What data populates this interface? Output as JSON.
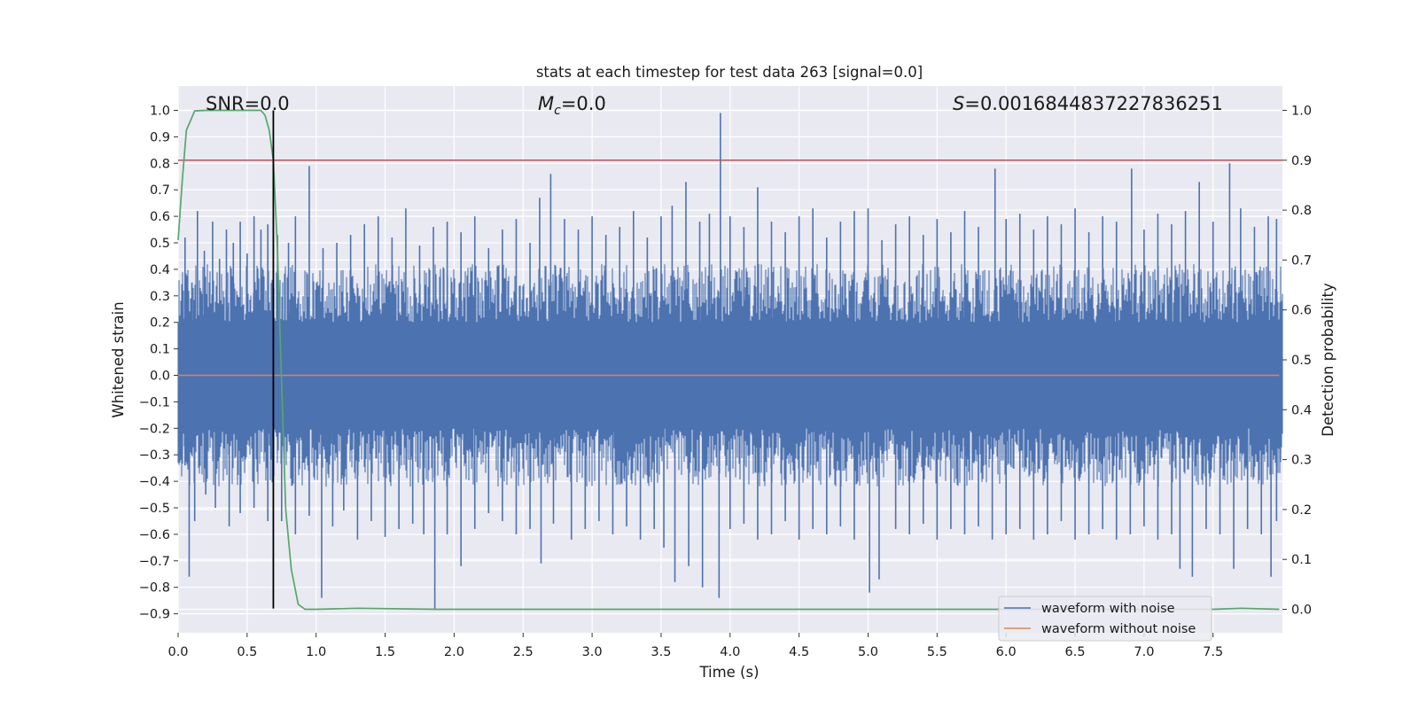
{
  "chart_data": {
    "type": "line",
    "title": "stats at each timestep for test data 263 [signal=0.0]",
    "xlabel": "Time (s)",
    "ylabel": "Whitened strain",
    "y2label": "Detection probability",
    "xlim": [
      0.0,
      7.98
    ],
    "ylim": [
      -0.9,
      1.0
    ],
    "y2lim": [
      0.0,
      1.0
    ],
    "x_ticks": [
      0.0,
      0.5,
      1.0,
      1.5,
      2.0,
      2.5,
      3.0,
      3.5,
      4.0,
      4.5,
      5.0,
      5.5,
      6.0,
      6.5,
      7.0,
      7.5
    ],
    "x_tick_labels": [
      "0.0",
      "0.5",
      "1.0",
      "1.5",
      "2.0",
      "2.5",
      "3.0",
      "3.5",
      "4.0",
      "4.5",
      "5.0",
      "5.5",
      "6.0",
      "6.5",
      "7.0",
      "7.5"
    ],
    "y_ticks": [
      1.0,
      0.9,
      0.8,
      0.7,
      0.6,
      0.5,
      0.4,
      0.3,
      0.2,
      0.1,
      0.0,
      -0.1,
      -0.2,
      -0.3,
      -0.4,
      -0.5,
      -0.6,
      -0.7,
      -0.8,
      -0.9
    ],
    "y_tick_labels": [
      "1.0",
      "0.9",
      "0.8",
      "0.7",
      "0.6",
      "0.5",
      "0.4",
      "0.3",
      "0.2",
      "0.1",
      "0.0",
      "−0.1",
      "−0.2",
      "−0.3",
      "−0.4",
      "−0.5",
      "−0.6",
      "−0.7",
      "−0.8",
      "−0.9"
    ],
    "y2_ticks": [
      1.0,
      0.9,
      0.8,
      0.7,
      0.6,
      0.5,
      0.4,
      0.3,
      0.2,
      0.1,
      0.0
    ],
    "y2_tick_labels": [
      "1.0",
      "0.9",
      "0.8",
      "0.7",
      "0.6",
      "0.5",
      "0.4",
      "0.3",
      "0.2",
      "0.1",
      "0.0"
    ],
    "grid": true,
    "background": "#e9e9f1",
    "legend_position": "lower-right",
    "annotations": {
      "snr": "SNR=0.0",
      "mc_symbol": "M",
      "mc_subscript": "c",
      "mc_value": "=0.0",
      "s_symbol": "S",
      "s_value": "=0.0016844837227836251"
    },
    "threshold": {
      "y2": 0.9,
      "color": "#c44e52"
    },
    "event_marker": {
      "x": 0.69,
      "y_range": [
        -0.88,
        1.0
      ],
      "color": "#000000"
    },
    "series": [
      {
        "name": "waveform with noise",
        "color": "#4c72b0",
        "axis": "left",
        "peaks_positive": [
          [
            0.05,
            0.52
          ],
          [
            0.1,
            0.35
          ],
          [
            0.14,
            0.62
          ],
          [
            0.19,
            0.47
          ],
          [
            0.25,
            0.58
          ],
          [
            0.3,
            0.44
          ],
          [
            0.35,
            0.55
          ],
          [
            0.4,
            0.5
          ],
          [
            0.45,
            0.58
          ],
          [
            0.5,
            0.46
          ],
          [
            0.55,
            0.6
          ],
          [
            0.6,
            0.55
          ],
          [
            0.65,
            0.57
          ],
          [
            0.72,
            0.53
          ],
          [
            0.8,
            0.5
          ],
          [
            0.85,
            0.6
          ],
          [
            0.95,
            0.79
          ],
          [
            1.05,
            0.48
          ],
          [
            1.15,
            0.5
          ],
          [
            1.25,
            0.53
          ],
          [
            1.35,
            0.57
          ],
          [
            1.45,
            0.6
          ],
          [
            1.55,
            0.52
          ],
          [
            1.65,
            0.63
          ],
          [
            1.75,
            0.49
          ],
          [
            1.85,
            0.56
          ],
          [
            1.95,
            0.58
          ],
          [
            2.05,
            0.54
          ],
          [
            2.15,
            0.6
          ],
          [
            2.25,
            0.48
          ],
          [
            2.35,
            0.55
          ],
          [
            2.45,
            0.59
          ],
          [
            2.55,
            0.5
          ],
          [
            2.62,
            0.67
          ],
          [
            2.7,
            0.76
          ],
          [
            2.8,
            0.59
          ],
          [
            2.9,
            0.55
          ],
          [
            3.0,
            0.6
          ],
          [
            3.1,
            0.53
          ],
          [
            3.2,
            0.56
          ],
          [
            3.3,
            0.62
          ],
          [
            3.4,
            0.52
          ],
          [
            3.5,
            0.6
          ],
          [
            3.58,
            0.64
          ],
          [
            3.68,
            0.73
          ],
          [
            3.78,
            0.58
          ],
          [
            3.85,
            0.61
          ],
          [
            3.93,
            0.99
          ],
          [
            4.0,
            0.6
          ],
          [
            4.1,
            0.56
          ],
          [
            4.2,
            0.71
          ],
          [
            4.3,
            0.58
          ],
          [
            4.4,
            0.54
          ],
          [
            4.5,
            0.6
          ],
          [
            4.6,
            0.63
          ],
          [
            4.7,
            0.52
          ],
          [
            4.8,
            0.58
          ],
          [
            4.9,
            0.62
          ],
          [
            5.0,
            0.63
          ],
          [
            5.1,
            0.51
          ],
          [
            5.2,
            0.57
          ],
          [
            5.3,
            0.6
          ],
          [
            5.4,
            0.53
          ],
          [
            5.5,
            0.59
          ],
          [
            5.6,
            0.54
          ],
          [
            5.7,
            0.62
          ],
          [
            5.8,
            0.56
          ],
          [
            5.92,
            0.78
          ],
          [
            6.0,
            0.59
          ],
          [
            6.1,
            0.61
          ],
          [
            6.2,
            0.55
          ],
          [
            6.3,
            0.6
          ],
          [
            6.4,
            0.57
          ],
          [
            6.5,
            0.63
          ],
          [
            6.6,
            0.54
          ],
          [
            6.7,
            0.6
          ],
          [
            6.8,
            0.58
          ],
          [
            6.91,
            0.78
          ],
          [
            7.0,
            0.55
          ],
          [
            7.1,
            0.61
          ],
          [
            7.2,
            0.57
          ],
          [
            7.3,
            0.62
          ],
          [
            7.4,
            0.73
          ],
          [
            7.5,
            0.58
          ],
          [
            7.62,
            0.8
          ],
          [
            7.7,
            0.63
          ],
          [
            7.8,
            0.56
          ],
          [
            7.9,
            0.6
          ],
          [
            7.96,
            0.59
          ]
        ],
        "peaks_negative": [
          [
            0.05,
            -0.34
          ],
          [
            0.08,
            -0.76
          ],
          [
            0.12,
            -0.55
          ],
          [
            0.2,
            -0.45
          ],
          [
            0.27,
            -0.5
          ],
          [
            0.37,
            -0.57
          ],
          [
            0.45,
            -0.52
          ],
          [
            0.55,
            -0.5
          ],
          [
            0.65,
            -0.55
          ],
          [
            0.75,
            -0.55
          ],
          [
            0.85,
            -0.6
          ],
          [
            0.95,
            -0.53
          ],
          [
            1.04,
            -0.84
          ],
          [
            1.12,
            -0.57
          ],
          [
            1.2,
            -0.51
          ],
          [
            1.3,
            -0.62
          ],
          [
            1.4,
            -0.55
          ],
          [
            1.5,
            -0.61
          ],
          [
            1.6,
            -0.58
          ],
          [
            1.7,
            -0.56
          ],
          [
            1.78,
            -0.6
          ],
          [
            1.86,
            -0.88
          ],
          [
            1.95,
            -0.6
          ],
          [
            2.05,
            -0.72
          ],
          [
            2.15,
            -0.58
          ],
          [
            2.25,
            -0.52
          ],
          [
            2.35,
            -0.55
          ],
          [
            2.45,
            -0.6
          ],
          [
            2.55,
            -0.58
          ],
          [
            2.63,
            -0.71
          ],
          [
            2.72,
            -0.56
          ],
          [
            2.85,
            -0.62
          ],
          [
            2.95,
            -0.58
          ],
          [
            3.05,
            -0.55
          ],
          [
            3.15,
            -0.6
          ],
          [
            3.25,
            -0.57
          ],
          [
            3.35,
            -0.62
          ],
          [
            3.45,
            -0.58
          ],
          [
            3.52,
            -0.65
          ],
          [
            3.6,
            -0.78
          ],
          [
            3.7,
            -0.72
          ],
          [
            3.8,
            -0.8
          ],
          [
            3.92,
            -0.84
          ],
          [
            4.0,
            -0.58
          ],
          [
            4.1,
            -0.56
          ],
          [
            4.2,
            -0.62
          ],
          [
            4.3,
            -0.6
          ],
          [
            4.4,
            -0.55
          ],
          [
            4.5,
            -0.62
          ],
          [
            4.6,
            -0.58
          ],
          [
            4.7,
            -0.6
          ],
          [
            4.8,
            -0.57
          ],
          [
            4.9,
            -0.62
          ],
          [
            5.01,
            -0.82
          ],
          [
            5.08,
            -0.77
          ],
          [
            5.2,
            -0.58
          ],
          [
            5.3,
            -0.6
          ],
          [
            5.4,
            -0.56
          ],
          [
            5.5,
            -0.62
          ],
          [
            5.6,
            -0.58
          ],
          [
            5.7,
            -0.6
          ],
          [
            5.8,
            -0.57
          ],
          [
            5.9,
            -0.62
          ],
          [
            6.0,
            -0.6
          ],
          [
            6.1,
            -0.58
          ],
          [
            6.2,
            -0.62
          ],
          [
            6.3,
            -0.6
          ],
          [
            6.4,
            -0.55
          ],
          [
            6.5,
            -0.62
          ],
          [
            6.6,
            -0.6
          ],
          [
            6.7,
            -0.58
          ],
          [
            6.8,
            -0.62
          ],
          [
            6.9,
            -0.6
          ],
          [
            7.0,
            -0.57
          ],
          [
            7.1,
            -0.62
          ],
          [
            7.2,
            -0.6
          ],
          [
            7.26,
            -0.73
          ],
          [
            7.35,
            -0.76
          ],
          [
            7.45,
            -0.58
          ],
          [
            7.55,
            -0.6
          ],
          [
            7.65,
            -0.73
          ],
          [
            7.75,
            -0.58
          ],
          [
            7.85,
            -0.6
          ],
          [
            7.92,
            -0.76
          ],
          [
            7.96,
            -0.55
          ]
        ]
      },
      {
        "name": "waveform without noise",
        "color": "#dd8452",
        "axis": "left",
        "x": [
          0.0,
          7.98
        ],
        "y": [
          0.0,
          0.0
        ]
      },
      {
        "color": "#55a868",
        "axis": "right",
        "x": [
          0.0,
          0.03,
          0.06,
          0.12,
          0.2,
          0.3,
          0.4,
          0.5,
          0.55,
          0.6,
          0.63,
          0.66,
          0.69,
          0.72,
          0.75,
          0.78,
          0.82,
          0.87,
          0.92,
          1.0,
          1.3,
          1.87,
          3.0,
          4.0,
          5.0,
          6.0,
          7.0,
          7.5,
          7.7,
          7.98
        ],
        "y": [
          0.74,
          0.86,
          0.96,
          0.999,
          1.0,
          1.0,
          1.0,
          1.0,
          1.0,
          1.0,
          0.99,
          0.96,
          0.9,
          0.72,
          0.45,
          0.2,
          0.08,
          0.01,
          0.0,
          0.0,
          0.002,
          0.0,
          0.0,
          0.0,
          0.0,
          0.0,
          0.0,
          0.0,
          0.002,
          0.0
        ]
      }
    ]
  }
}
